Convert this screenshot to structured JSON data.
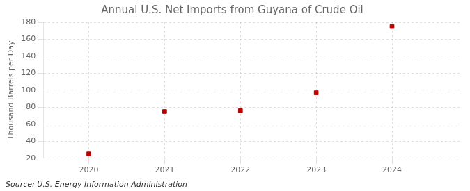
{
  "chart_data": {
    "type": "scatter",
    "title": "Annual U.S. Net Imports from Guyana of Crude Oil",
    "ylabel": "Thousand Barrels per Day",
    "annotations": [
      "Source: U.S. Energy Information Administration"
    ],
    "x": [
      2020,
      2021,
      2022,
      2023,
      2024
    ],
    "values": [
      25,
      75,
      76,
      97,
      175
    ],
    "color": "#bb0000",
    "marker": "square",
    "xlim": [
      2019.4,
      2024.9
    ],
    "xticks": [
      2020,
      2021,
      2022,
      2023,
      2024
    ],
    "ylim": [
      20,
      180
    ],
    "yticks": [
      20,
      40,
      60,
      80,
      100,
      120,
      140,
      160,
      180
    ],
    "grid": true
  }
}
